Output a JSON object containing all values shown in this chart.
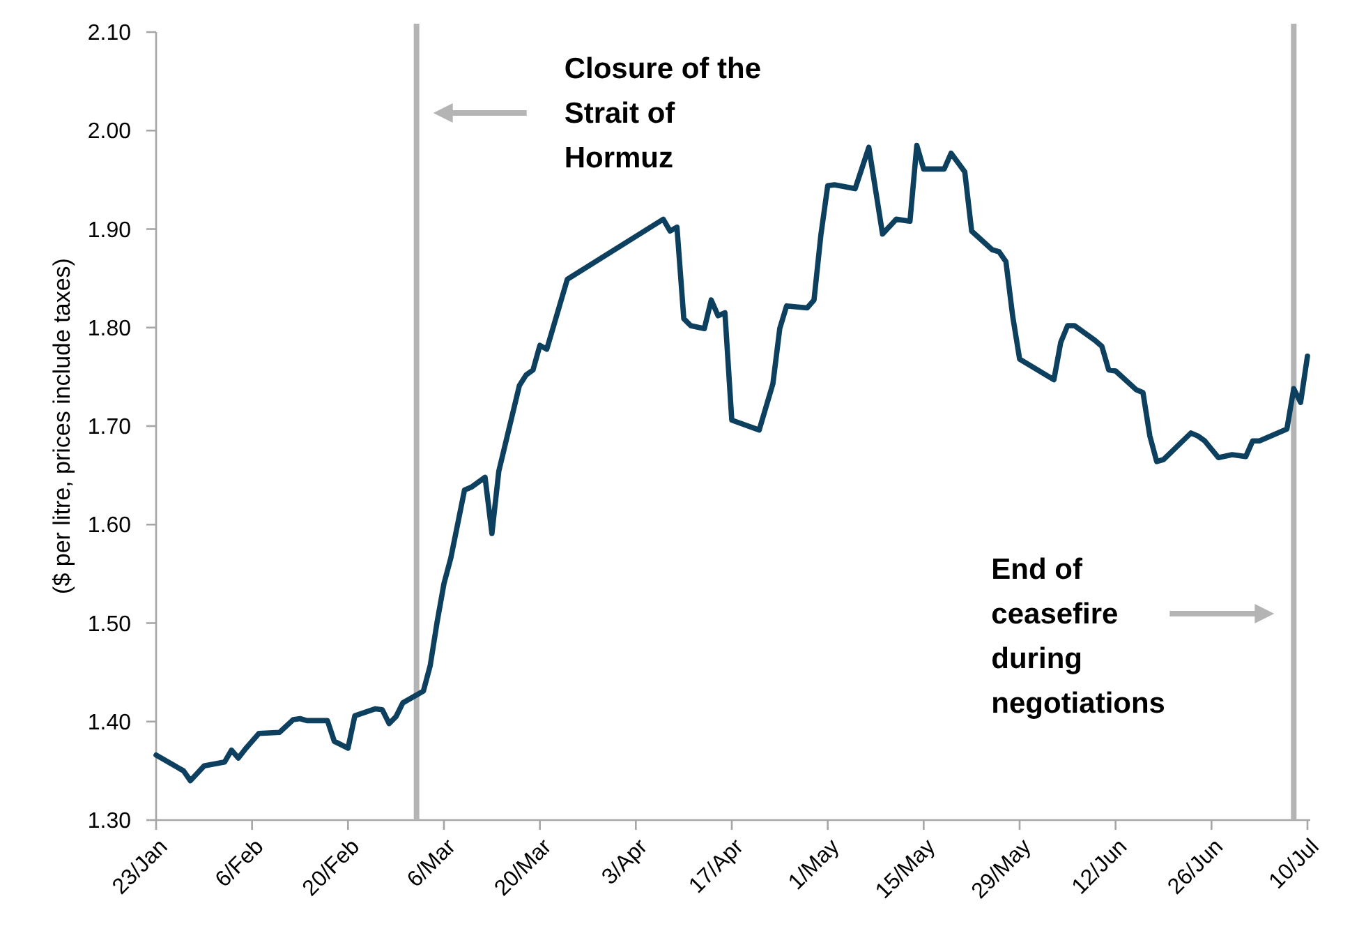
{
  "chart_data": {
    "type": "line",
    "ylabel": "($ per litre, prices include taxes)",
    "color": "#0d3f5f",
    "x": [
      "--01-23",
      "--01-27",
      "--01-28",
      "--01-30",
      "--02-02",
      "--02-03",
      "--02-04",
      "--02-05",
      "--02-07",
      "--02-10",
      "--02-12",
      "--02-13",
      "--02-14",
      "--02-17",
      "--02-18",
      "--02-20",
      "--02-21",
      "--02-24",
      "--02-25",
      "--02-26",
      "--02-27",
      "--02-28",
      "--03-03",
      "--03-04",
      "--03-05",
      "--03-06",
      "--03-07",
      "--03-09",
      "--03-10",
      "--03-12",
      "--03-13",
      "--03-14",
      "--03-17",
      "--03-18",
      "--03-19",
      "--03-20",
      "--03-21",
      "--03-24",
      "--04-07",
      "--04-08",
      "--04-09",
      "--04-10",
      "--04-11",
      "--04-13",
      "--04-14",
      "--04-15",
      "--04-16",
      "--04-17",
      "--04-21",
      "--04-23",
      "--04-24",
      "--04-25",
      "--04-28",
      "--04-29",
      "--04-30",
      "--05-01",
      "--05-02",
      "--05-05",
      "--05-07",
      "--05-09",
      "--05-11",
      "--05-13",
      "--05-14",
      "--05-15",
      "--05-18",
      "--05-19",
      "--05-21",
      "--05-22",
      "--05-25",
      "--05-26",
      "--05-27",
      "--05-28",
      "--05-29",
      "--06-03",
      "--06-04",
      "--06-05",
      "--06-06",
      "--06-09",
      "--06-10",
      "--06-11",
      "--06-12",
      "--06-15",
      "--06-16",
      "--06-17",
      "--06-18",
      "--06-19",
      "--06-23",
      "--06-24",
      "--06-25",
      "--06-27",
      "--06-29",
      "--07-01",
      "--07-02",
      "--07-03",
      "--07-07",
      "--07-08",
      "--07-09",
      "--07-10"
    ],
    "values": [
      1.366,
      1.35,
      1.34,
      1.355,
      1.359,
      1.371,
      1.363,
      1.372,
      1.388,
      1.389,
      1.402,
      1.403,
      1.401,
      1.401,
      1.38,
      1.373,
      1.406,
      1.413,
      1.412,
      1.398,
      1.405,
      1.419,
      1.431,
      1.457,
      1.501,
      1.54,
      1.566,
      1.635,
      1.638,
      1.648,
      1.591,
      1.654,
      1.741,
      1.752,
      1.757,
      1.782,
      1.778,
      1.849,
      1.91,
      1.898,
      1.902,
      1.809,
      1.802,
      1.799,
      1.828,
      1.812,
      1.815,
      1.706,
      1.696,
      1.743,
      1.799,
      1.822,
      1.82,
      1.828,
      1.894,
      1.944,
      1.945,
      1.941,
      1.983,
      1.895,
      1.91,
      1.908,
      1.985,
      1.961,
      1.961,
      1.977,
      1.958,
      1.898,
      1.879,
      1.877,
      1.867,
      1.811,
      1.768,
      1.747,
      1.785,
      1.802,
      1.802,
      1.787,
      1.781,
      1.757,
      1.756,
      1.737,
      1.734,
      1.69,
      1.664,
      1.666,
      1.693,
      1.69,
      1.685,
      1.668,
      1.671,
      1.669,
      1.685,
      1.685,
      1.697,
      1.738,
      1.724,
      1.771
    ],
    "xlim": [
      "--01-23",
      "--07-10"
    ],
    "xticks": [
      {
        "value": "--01-23",
        "label": "23/Jan"
      },
      {
        "value": "--02-06",
        "label": "6/Feb"
      },
      {
        "value": "--02-20",
        "label": "20/Feb"
      },
      {
        "value": "--03-06",
        "label": "6/Mar"
      },
      {
        "value": "--03-20",
        "label": "20/Mar"
      },
      {
        "value": "--04-03",
        "label": "3/Apr"
      },
      {
        "value": "--04-17",
        "label": "17/Apr"
      },
      {
        "value": "--05-01",
        "label": "1/May"
      },
      {
        "value": "--05-15",
        "label": "15/May"
      },
      {
        "value": "--05-29",
        "label": "29/May"
      },
      {
        "value": "--06-12",
        "label": "12/Jun"
      },
      {
        "value": "--06-26",
        "label": "26/Jun"
      },
      {
        "value": "--07-10",
        "label": "10/Jul"
      }
    ],
    "ylim": [
      1.3,
      2.1
    ],
    "yticks": [
      {
        "value": 1.3,
        "label": "1.30"
      },
      {
        "value": 1.4,
        "label": "1.40"
      },
      {
        "value": 1.5,
        "label": "1.50"
      },
      {
        "value": 1.6,
        "label": "1.60"
      },
      {
        "value": 1.7,
        "label": "1.70"
      },
      {
        "value": 1.8,
        "label": "1.80"
      },
      {
        "value": 1.9,
        "label": "1.90"
      },
      {
        "value": 2.0,
        "label": "2.00"
      },
      {
        "value": 2.1,
        "label": "2.10"
      }
    ],
    "ref_lines": [
      {
        "axis": "x",
        "value": "--03-02",
        "color": "#b4b4b4"
      },
      {
        "axis": "x",
        "value": "--07-08",
        "color": "#b4b4b4"
      }
    ],
    "annotations": [
      "Closure of the Strait of Hormuz",
      "End of ceasefire during negotiations"
    ]
  }
}
